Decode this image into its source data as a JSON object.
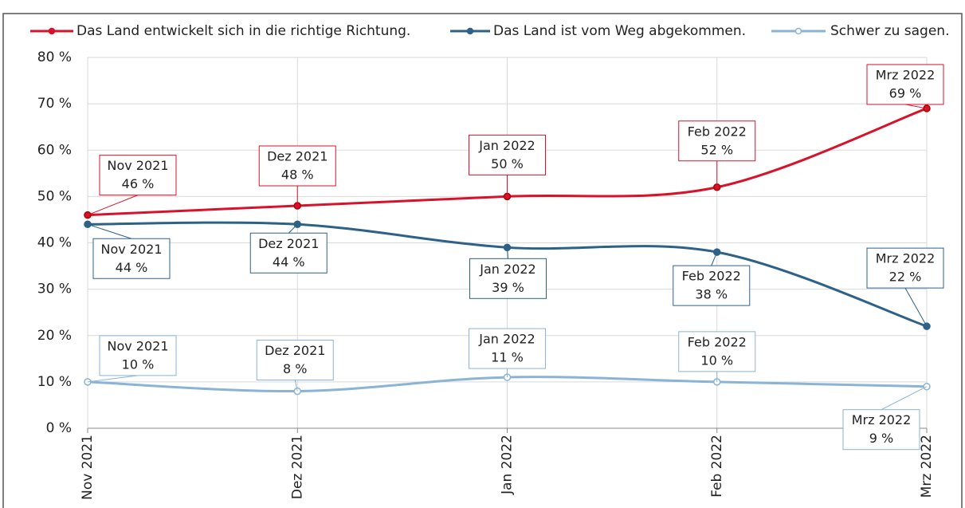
{
  "chart_data": {
    "type": "line",
    "categories": [
      "Nov 2021",
      "Dez 2021",
      "Jan 2022",
      "Feb 2022",
      "Mrz 2022"
    ],
    "series": [
      {
        "name": "Das Land entwickelt sich in die richtige Richtung.",
        "color": "#d7132b",
        "values": [
          46,
          48,
          50,
          52,
          69
        ],
        "value_labels": [
          "46 %",
          "48 %",
          "50 %",
          "52 %",
          "69 %"
        ]
      },
      {
        "name": "Das Land ist vom Weg abgekommen.",
        "color": "#2e6188",
        "values": [
          44,
          44,
          39,
          38,
          22
        ],
        "value_labels": [
          "44 %",
          "44 %",
          "39 %",
          "38 %",
          "22 %"
        ]
      },
      {
        "name": "Schwer zu sagen.",
        "color": "#8ab4d6",
        "values": [
          10,
          8,
          11,
          10,
          9
        ],
        "value_labels": [
          "10 %",
          "8 %",
          "11 %",
          "10 %",
          "9 %"
        ]
      }
    ],
    "ylim": [
      0,
      80
    ],
    "yticks": [
      {
        "value": 0,
        "label": "0 %"
      },
      {
        "value": 10,
        "label": "10 %"
      },
      {
        "value": 20,
        "label": "20 %"
      },
      {
        "value": 30,
        "label": "30 %"
      },
      {
        "value": 40,
        "label": "40 %"
      },
      {
        "value": 50,
        "label": "50 %"
      },
      {
        "value": 60,
        "label": "60 %"
      },
      {
        "value": 70,
        "label": "70 %"
      },
      {
        "value": 80,
        "label": "80 %"
      }
    ],
    "grid": true,
    "legend": "top"
  }
}
